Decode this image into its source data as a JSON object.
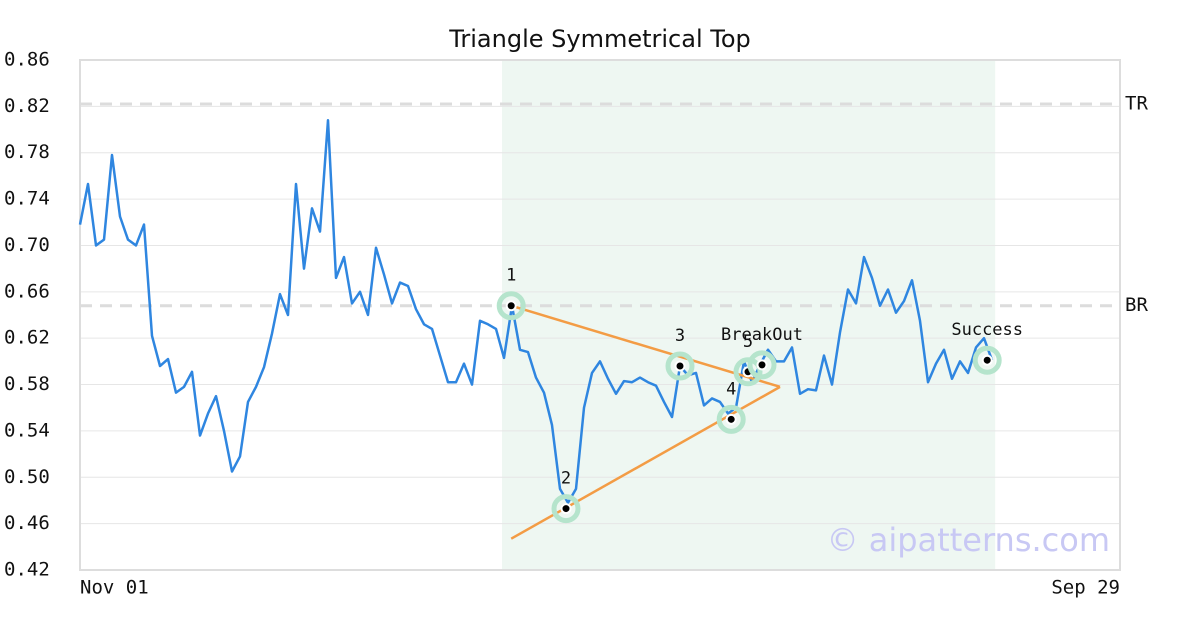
{
  "chart_data": {
    "type": "line",
    "title": "Triangle Symmetrical Top",
    "watermark": "© aipatterns.com",
    "color": "#2f86e0",
    "x": [
      0,
      1,
      2,
      3,
      4,
      5,
      6,
      7,
      8,
      9,
      10,
      11,
      12,
      13,
      14,
      15,
      16,
      17,
      18,
      19,
      20,
      21,
      22,
      23,
      24,
      25,
      26,
      27,
      28,
      29,
      30,
      31,
      32,
      33,
      34,
      35,
      36,
      37,
      38,
      39,
      40,
      41,
      42,
      43,
      44,
      45,
      46,
      47,
      48,
      49,
      50,
      51,
      52,
      53,
      54,
      55,
      56,
      57,
      58,
      59,
      60,
      61,
      62,
      63,
      64,
      65,
      66,
      67,
      68,
      69,
      70,
      71,
      72,
      73,
      74,
      75,
      76,
      77,
      78,
      79,
      80,
      81,
      82,
      83,
      84,
      85,
      86,
      87,
      88,
      89,
      90,
      91,
      92,
      93,
      94,
      95,
      96,
      97,
      98,
      99,
      100,
      101,
      102,
      103,
      104,
      105,
      106,
      107,
      108,
      109,
      110,
      111,
      112,
      113,
      114
    ],
    "values": [
      0.718,
      0.753,
      0.7,
      0.705,
      0.778,
      0.725,
      0.705,
      0.7,
      0.718,
      0.622,
      0.596,
      0.602,
      0.573,
      0.578,
      0.591,
      0.536,
      0.555,
      0.57,
      0.54,
      0.505,
      0.518,
      0.565,
      0.578,
      0.595,
      0.624,
      0.658,
      0.64,
      0.753,
      0.68,
      0.732,
      0.712,
      0.808,
      0.672,
      0.69,
      0.65,
      0.66,
      0.64,
      0.698,
      0.675,
      0.65,
      0.668,
      0.665,
      0.645,
      0.632,
      0.628,
      0.605,
      0.582,
      0.582,
      0.598,
      0.58,
      0.635,
      0.632,
      0.628,
      0.603,
      0.648,
      0.61,
      0.608,
      0.586,
      0.573,
      0.545,
      0.49,
      0.478,
      0.49,
      0.56,
      0.59,
      0.6,
      0.585,
      0.572,
      0.583,
      0.582,
      0.586,
      0.582,
      0.579,
      0.565,
      0.552,
      0.596,
      0.588,
      0.59,
      0.562,
      0.568,
      0.565,
      0.555,
      0.56,
      0.6,
      0.582,
      0.597,
      0.61,
      0.6,
      0.6,
      0.612,
      0.572,
      0.576,
      0.575,
      0.605,
      0.58,
      0.625,
      0.662,
      0.65,
      0.69,
      0.672,
      0.648,
      0.662,
      0.642,
      0.652,
      0.67,
      0.635,
      0.582,
      0.598,
      0.61,
      0.585,
      0.6,
      0.59,
      0.612,
      0.62,
      0.601
    ],
    "xlim": [
      0,
      130
    ],
    "xticks": [
      {
        "value": 0,
        "label": "Nov 01"
      },
      {
        "value": 130,
        "label": "Sep 29"
      }
    ],
    "ylim": [
      0.42,
      0.86
    ],
    "yticks": [
      0.42,
      0.46,
      {
        "value": 0.5,
        "label": "0.50"
      },
      0.54,
      0.58,
      0.62,
      0.66,
      {
        "value": 0.7,
        "label": "0.70"
      },
      0.74,
      0.78,
      0.82,
      0.86
    ],
    "grid": true,
    "shaded_x": [
      52.75,
      114.4
    ],
    "hlines": [
      {
        "label": "TR",
        "value": 0.822
      },
      {
        "label": "BR",
        "value": 0.648
      }
    ],
    "pattern_lines": [
      {
        "x": [
          53.9,
          87.5
        ],
        "y": [
          0.648,
          0.578
        ]
      },
      {
        "x": [
          53.9,
          87.5
        ],
        "y": [
          0.447,
          0.578
        ]
      }
    ],
    "pattern_color": "#f39c45",
    "points": [
      {
        "label": "1",
        "x": 53.9,
        "y": 0.648
      },
      {
        "label": "2",
        "x": 60.75,
        "y": 0.473
      },
      {
        "label": "3",
        "x": 75,
        "y": 0.596
      },
      {
        "label": "4",
        "x": 81.4,
        "y": 0.55
      },
      {
        "label": "5",
        "x": 83.5,
        "y": 0.591
      },
      {
        "label": "BreakOut",
        "x": 85.25,
        "y": 0.597
      },
      {
        "label": "Success",
        "x": 113.4,
        "y": 0.601
      }
    ]
  }
}
